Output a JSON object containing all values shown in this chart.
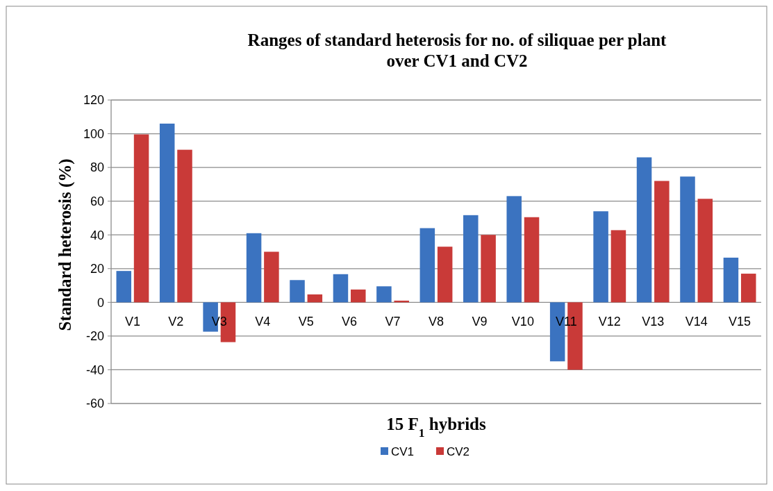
{
  "chart_data": {
    "type": "bar",
    "title": "Ranges of standard heterosis for no. of siliquae per plant over CV1 and CV2",
    "xlabel": "15 F$_{1}$ hybrids",
    "ylabel": "Standard heterosis (%)",
    "categories": [
      "V1",
      "V2",
      "V3",
      "V4",
      "V5",
      "V6",
      "V7",
      "V8",
      "V9",
      "V10",
      "V11",
      "V12",
      "V13",
      "V14",
      "V15"
    ],
    "series": [
      {
        "name": "CV1",
        "color": "#3b73c0",
        "values": [
          18.6,
          106,
          -17.4,
          41,
          13.2,
          16.7,
          9.5,
          44,
          51.7,
          63,
          -35,
          54,
          86,
          74.6,
          26.5
        ]
      },
      {
        "name": "CV2",
        "color": "#c93a38",
        "values": [
          99.6,
          90.5,
          -23.6,
          30,
          4.7,
          7.6,
          1,
          33,
          40,
          50.5,
          -40,
          42.8,
          72,
          61.4,
          17
        ]
      }
    ],
    "ylim": [
      -60,
      120
    ],
    "yticks": [
      -60,
      -40,
      -20,
      0,
      20,
      40,
      60,
      80,
      100,
      120
    ],
    "grid": "y",
    "legend": "bottom"
  }
}
